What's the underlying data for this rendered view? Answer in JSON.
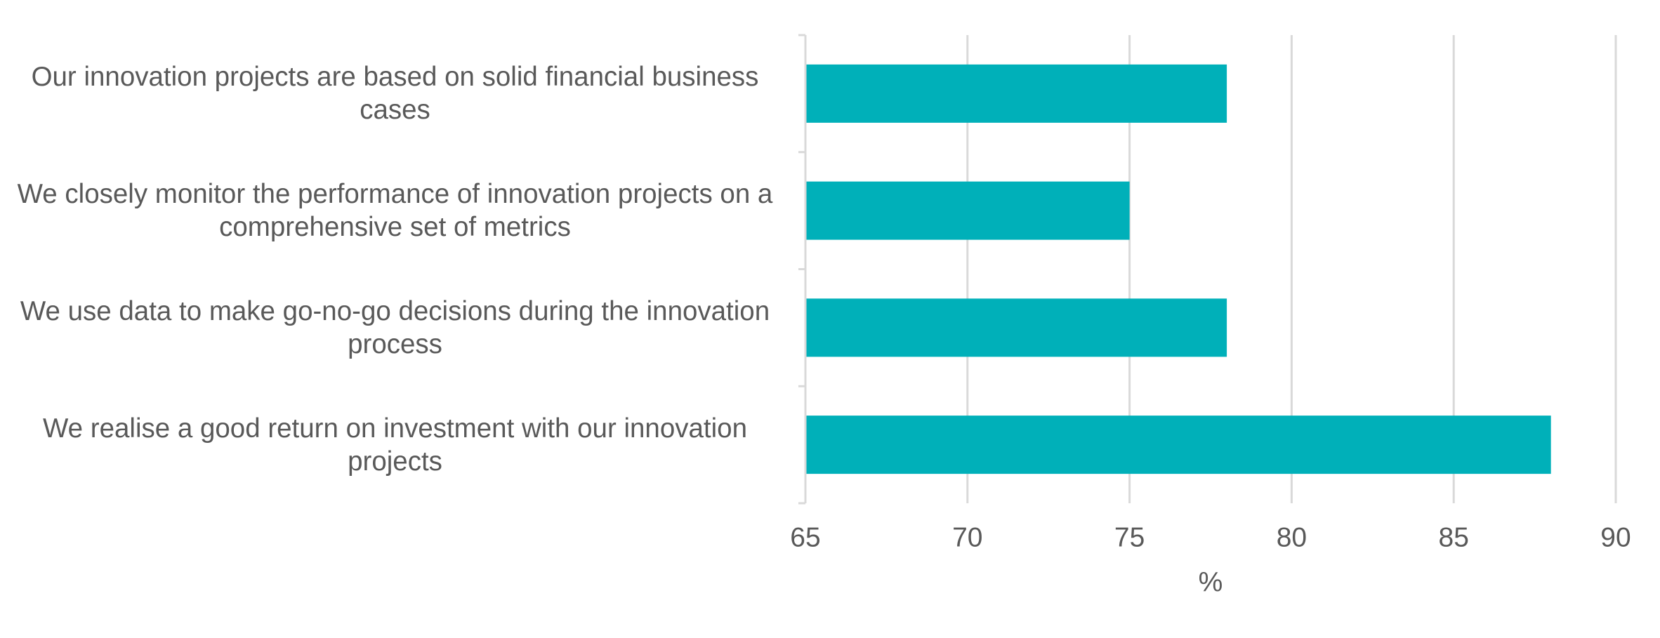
{
  "chart_data": {
    "type": "bar",
    "orientation": "horizontal",
    "categories": [
      "Our innovation projects are based on solid financial business cases",
      "We closely monitor the performance of innovation projects on a comprehensive set of metrics",
      "We use data to make go-no-go decisions during the innovation process",
      "We realise a good return on investment with our innovation projects"
    ],
    "values": [
      78,
      75,
      78,
      88
    ],
    "color": "#00b0b9",
    "xlabel": "%",
    "xlim": [
      65,
      90
    ],
    "xticks": [
      65,
      70,
      75,
      80,
      85,
      90
    ],
    "grid": true
  }
}
